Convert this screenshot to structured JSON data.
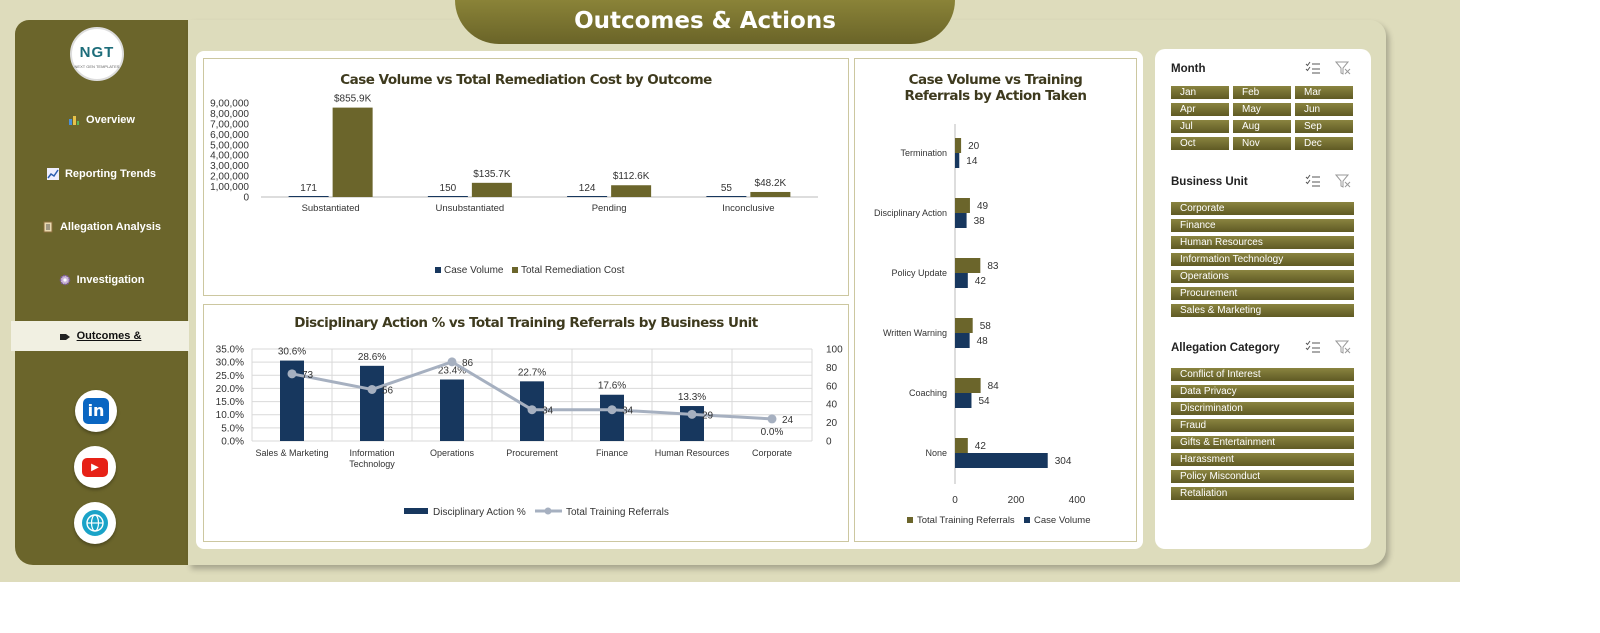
{
  "header": {
    "title": "Outcomes & Actions"
  },
  "logo": {
    "text": "NGT",
    "subtext": "NEXT GEN TEMPLATES"
  },
  "nav": [
    {
      "label": "Overview",
      "icon": "bar-chart-icon"
    },
    {
      "label": "Reporting Trends",
      "icon": "line-chart-icon"
    },
    {
      "label": "Allegation Analysis",
      "icon": "clipboard-icon"
    },
    {
      "label": "Investigation",
      "icon": "gear-icon"
    },
    {
      "label": "Outcomes &",
      "icon": "tag-icon",
      "active": true
    }
  ],
  "social": [
    {
      "name": "linkedin-icon",
      "label": "in"
    },
    {
      "name": "youtube-icon",
      "label": "▶"
    },
    {
      "name": "globe-icon",
      "label": "🌐"
    }
  ],
  "colors": {
    "navy": "#17375e",
    "olive": "#6b652b",
    "line": "#a6b0c0"
  },
  "chart_data": [
    {
      "type": "bar",
      "title": "Case Volume vs Total Remediation Cost by Outcome",
      "categories": [
        "Substantiated",
        "Unsubstantiated",
        "Pending",
        "Inconclusive"
      ],
      "series": [
        {
          "name": "Case Volume",
          "values": [
            171,
            150,
            124,
            55
          ],
          "labels": [
            "171",
            "150",
            "124",
            "55"
          ],
          "color": "#17375e"
        },
        {
          "name": "Total Remediation Cost",
          "values": [
            855900,
            135700,
            112600,
            48200
          ],
          "labels": [
            "$855.9K",
            "$135.7K",
            "$112.6K",
            "$48.2K"
          ],
          "color": "#6b652b"
        }
      ],
      "yticks": [
        "0",
        "1,00,000",
        "2,00,000",
        "3,00,000",
        "4,00,000",
        "5,00,000",
        "6,00,000",
        "7,00,000",
        "8,00,000",
        "9,00,000"
      ],
      "ylim": [
        0,
        900000
      ],
      "legend": "bottom"
    },
    {
      "type": "bar",
      "title": "Disciplinary Action % vs Total Training Referrals by Business Unit",
      "categories": [
        "Sales & Marketing",
        "Information Technology",
        "Operations",
        "Procurement",
        "Finance",
        "Human Resources",
        "Corporate"
      ],
      "category_labels": [
        [
          "Sales & Marketing"
        ],
        [
          "Information",
          "Technology"
        ],
        [
          "Operations"
        ],
        [
          "Procurement"
        ],
        [
          "Finance"
        ],
        [
          "Human Resources"
        ],
        [
          "Corporate"
        ]
      ],
      "series": [
        {
          "name": "Disciplinary Action %",
          "type": "bar",
          "values": [
            30.6,
            28.6,
            23.4,
            22.7,
            17.6,
            13.3,
            0.0
          ],
          "labels": [
            "30.6%",
            "28.6%",
            "23.4%",
            "22.7%",
            "17.6%",
            "13.3%",
            "0.0%"
          ],
          "color": "#17375e"
        },
        {
          "name": "Total Training Referrals",
          "type": "line",
          "values": [
            73,
            56,
            86,
            34,
            34,
            29,
            24
          ],
          "labels": [
            "73",
            "56",
            "86",
            "34",
            "34",
            "29",
            "24"
          ],
          "color": "#a6b0c0"
        }
      ],
      "yticks_left": [
        "0.0%",
        "5.0%",
        "10.0%",
        "15.0%",
        "20.0%",
        "25.0%",
        "30.0%",
        "35.0%"
      ],
      "ylim_left": [
        0,
        35
      ],
      "yticks_right": [
        "0",
        "20",
        "40",
        "60",
        "80",
        "100"
      ],
      "ylim_right": [
        0,
        100
      ],
      "grid": true,
      "legend": "bottom"
    },
    {
      "type": "bar",
      "orientation": "horizontal",
      "title": "Case Volume vs Training Referrals by Action Taken",
      "title_lines": [
        "Case Volume vs Training",
        "Referrals by Action Taken"
      ],
      "categories": [
        "Termination",
        "Disciplinary Action",
        "Policy Update",
        "Written Warning",
        "Coaching",
        "None"
      ],
      "series": [
        {
          "name": "Total Training Referrals",
          "values": [
            20,
            49,
            83,
            58,
            84,
            42
          ],
          "color": "#6b652b"
        },
        {
          "name": "Case Volume",
          "values": [
            14,
            38,
            42,
            48,
            54,
            304
          ],
          "color": "#17375e"
        }
      ],
      "xticks": [
        "0",
        "200",
        "400"
      ],
      "xlim": [
        0,
        400
      ],
      "legend": "bottom"
    }
  ],
  "slicers": {
    "month": {
      "title": "Month",
      "items": [
        "Jan",
        "Feb",
        "Mar",
        "Apr",
        "May",
        "Jun",
        "Jul",
        "Aug",
        "Sep",
        "Oct",
        "Nov",
        "Dec"
      ]
    },
    "business_unit": {
      "title": "Business Unit",
      "items": [
        "Corporate",
        "Finance",
        "Human Resources",
        "Information Technology",
        "Operations",
        "Procurement",
        "Sales & Marketing"
      ]
    },
    "allegation_category": {
      "title": "Allegation Category",
      "items": [
        "Conflict of Interest",
        "Data Privacy",
        "Discrimination",
        "Fraud",
        "Gifts & Entertainment",
        "Harassment",
        "Policy Misconduct",
        "Retaliation"
      ]
    }
  }
}
